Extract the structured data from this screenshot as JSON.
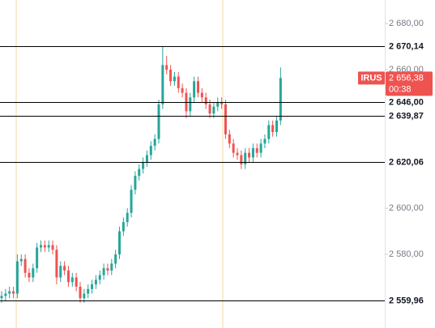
{
  "chart_data": {
    "type": "candlestick",
    "symbol": "IRUS",
    "up_color": "#26a69a",
    "down_color": "#ef5350",
    "ylim": [
      2548.1,
      2690.2
    ],
    "yticks": [
      {
        "value": 2680,
        "label": "2 680,00"
      },
      {
        "value": 2660,
        "label": "2 660,00"
      },
      {
        "value": 2600,
        "label": "2 600,00"
      },
      {
        "value": 2580,
        "label": "2 580,00"
      }
    ],
    "levels": [
      {
        "value": 2670.14,
        "label": "2 670,14"
      },
      {
        "value": 2646.0,
        "label": "2 646,00"
      },
      {
        "value": 2639.87,
        "label": "2 639,87"
      },
      {
        "value": 2620.06,
        "label": "2 620,06"
      },
      {
        "value": 2559.96,
        "label": "2 559,96"
      }
    ],
    "current_price": {
      "value": 2656.38,
      "label": "2 656,38",
      "countdown": "00:38"
    },
    "open": [
      2561,
      2562,
      2563,
      2564,
      2563,
      2577,
      2578,
      2572,
      2570,
      2574,
      2583,
      2584,
      2583,
      2584,
      2582,
      2570,
      2575,
      2573,
      2568,
      2570,
      2566,
      2561,
      2563,
      2565,
      2567,
      2569,
      2571,
      2574,
      2573,
      2576,
      2580,
      2590,
      2594,
      2598,
      2608,
      2614,
      2617,
      2620,
      2623,
      2627,
      2630,
      2645,
      2662,
      2660,
      2655,
      2657,
      2652,
      2650,
      2642,
      2648,
      2655,
      2650,
      2648,
      2645,
      2641,
      2644,
      2646,
      2645,
      2632,
      2628,
      2624,
      2623,
      2619,
      2624,
      2622,
      2626,
      2624,
      2628,
      2630,
      2636,
      2633,
      2638
    ],
    "high": [
      2564,
      2565,
      2566,
      2566,
      2580,
      2580,
      2580,
      2574,
      2576,
      2585,
      2586,
      2586,
      2586,
      2586,
      2584,
      2577,
      2577,
      2575,
      2572,
      2572,
      2568,
      2565,
      2567,
      2569,
      2571,
      2573,
      2576,
      2576,
      2578,
      2582,
      2592,
      2596,
      2600,
      2610,
      2616,
      2619,
      2622,
      2625,
      2629,
      2632,
      2647,
      2670,
      2666,
      2662,
      2659,
      2659,
      2654,
      2652,
      2650,
      2657,
      2657,
      2652,
      2650,
      2647,
      2646,
      2648,
      2648,
      2647,
      2634,
      2630,
      2626,
      2625,
      2626,
      2626,
      2628,
      2628,
      2630,
      2632,
      2638,
      2638,
      2640,
      2661
    ],
    "low": [
      2559,
      2560,
      2561,
      2561,
      2561,
      2575,
      2570,
      2568,
      2568,
      2572,
      2581,
      2581,
      2581,
      2580,
      2567,
      2568,
      2571,
      2566,
      2566,
      2564,
      2559,
      2559,
      2561,
      2563,
      2565,
      2567,
      2569,
      2571,
      2571,
      2574,
      2578,
      2588,
      2592,
      2596,
      2606,
      2612,
      2615,
      2618,
      2621,
      2625,
      2628,
      2643,
      2658,
      2653,
      2653,
      2650,
      2648,
      2639,
      2640,
      2646,
      2648,
      2646,
      2643,
      2639,
      2639,
      2642,
      2643,
      2630,
      2626,
      2622,
      2621,
      2617,
      2617,
      2620,
      2620,
      2622,
      2622,
      2626,
      2628,
      2631,
      2631,
      2636
    ],
    "close": [
      2562,
      2563,
      2564,
      2563,
      2577,
      2578,
      2572,
      2570,
      2574,
      2583,
      2584,
      2583,
      2584,
      2582,
      2570,
      2575,
      2573,
      2568,
      2570,
      2566,
      2561,
      2563,
      2565,
      2567,
      2569,
      2571,
      2574,
      2573,
      2576,
      2580,
      2590,
      2594,
      2598,
      2608,
      2614,
      2617,
      2620,
      2623,
      2627,
      2630,
      2645,
      2662,
      2660,
      2655,
      2657,
      2652,
      2650,
      2642,
      2648,
      2655,
      2650,
      2648,
      2645,
      2641,
      2644,
      2646,
      2645,
      2632,
      2628,
      2624,
      2623,
      2619,
      2624,
      2622,
      2626,
      2624,
      2628,
      2630,
      2636,
      2633,
      2638,
      2656.38
    ]
  }
}
